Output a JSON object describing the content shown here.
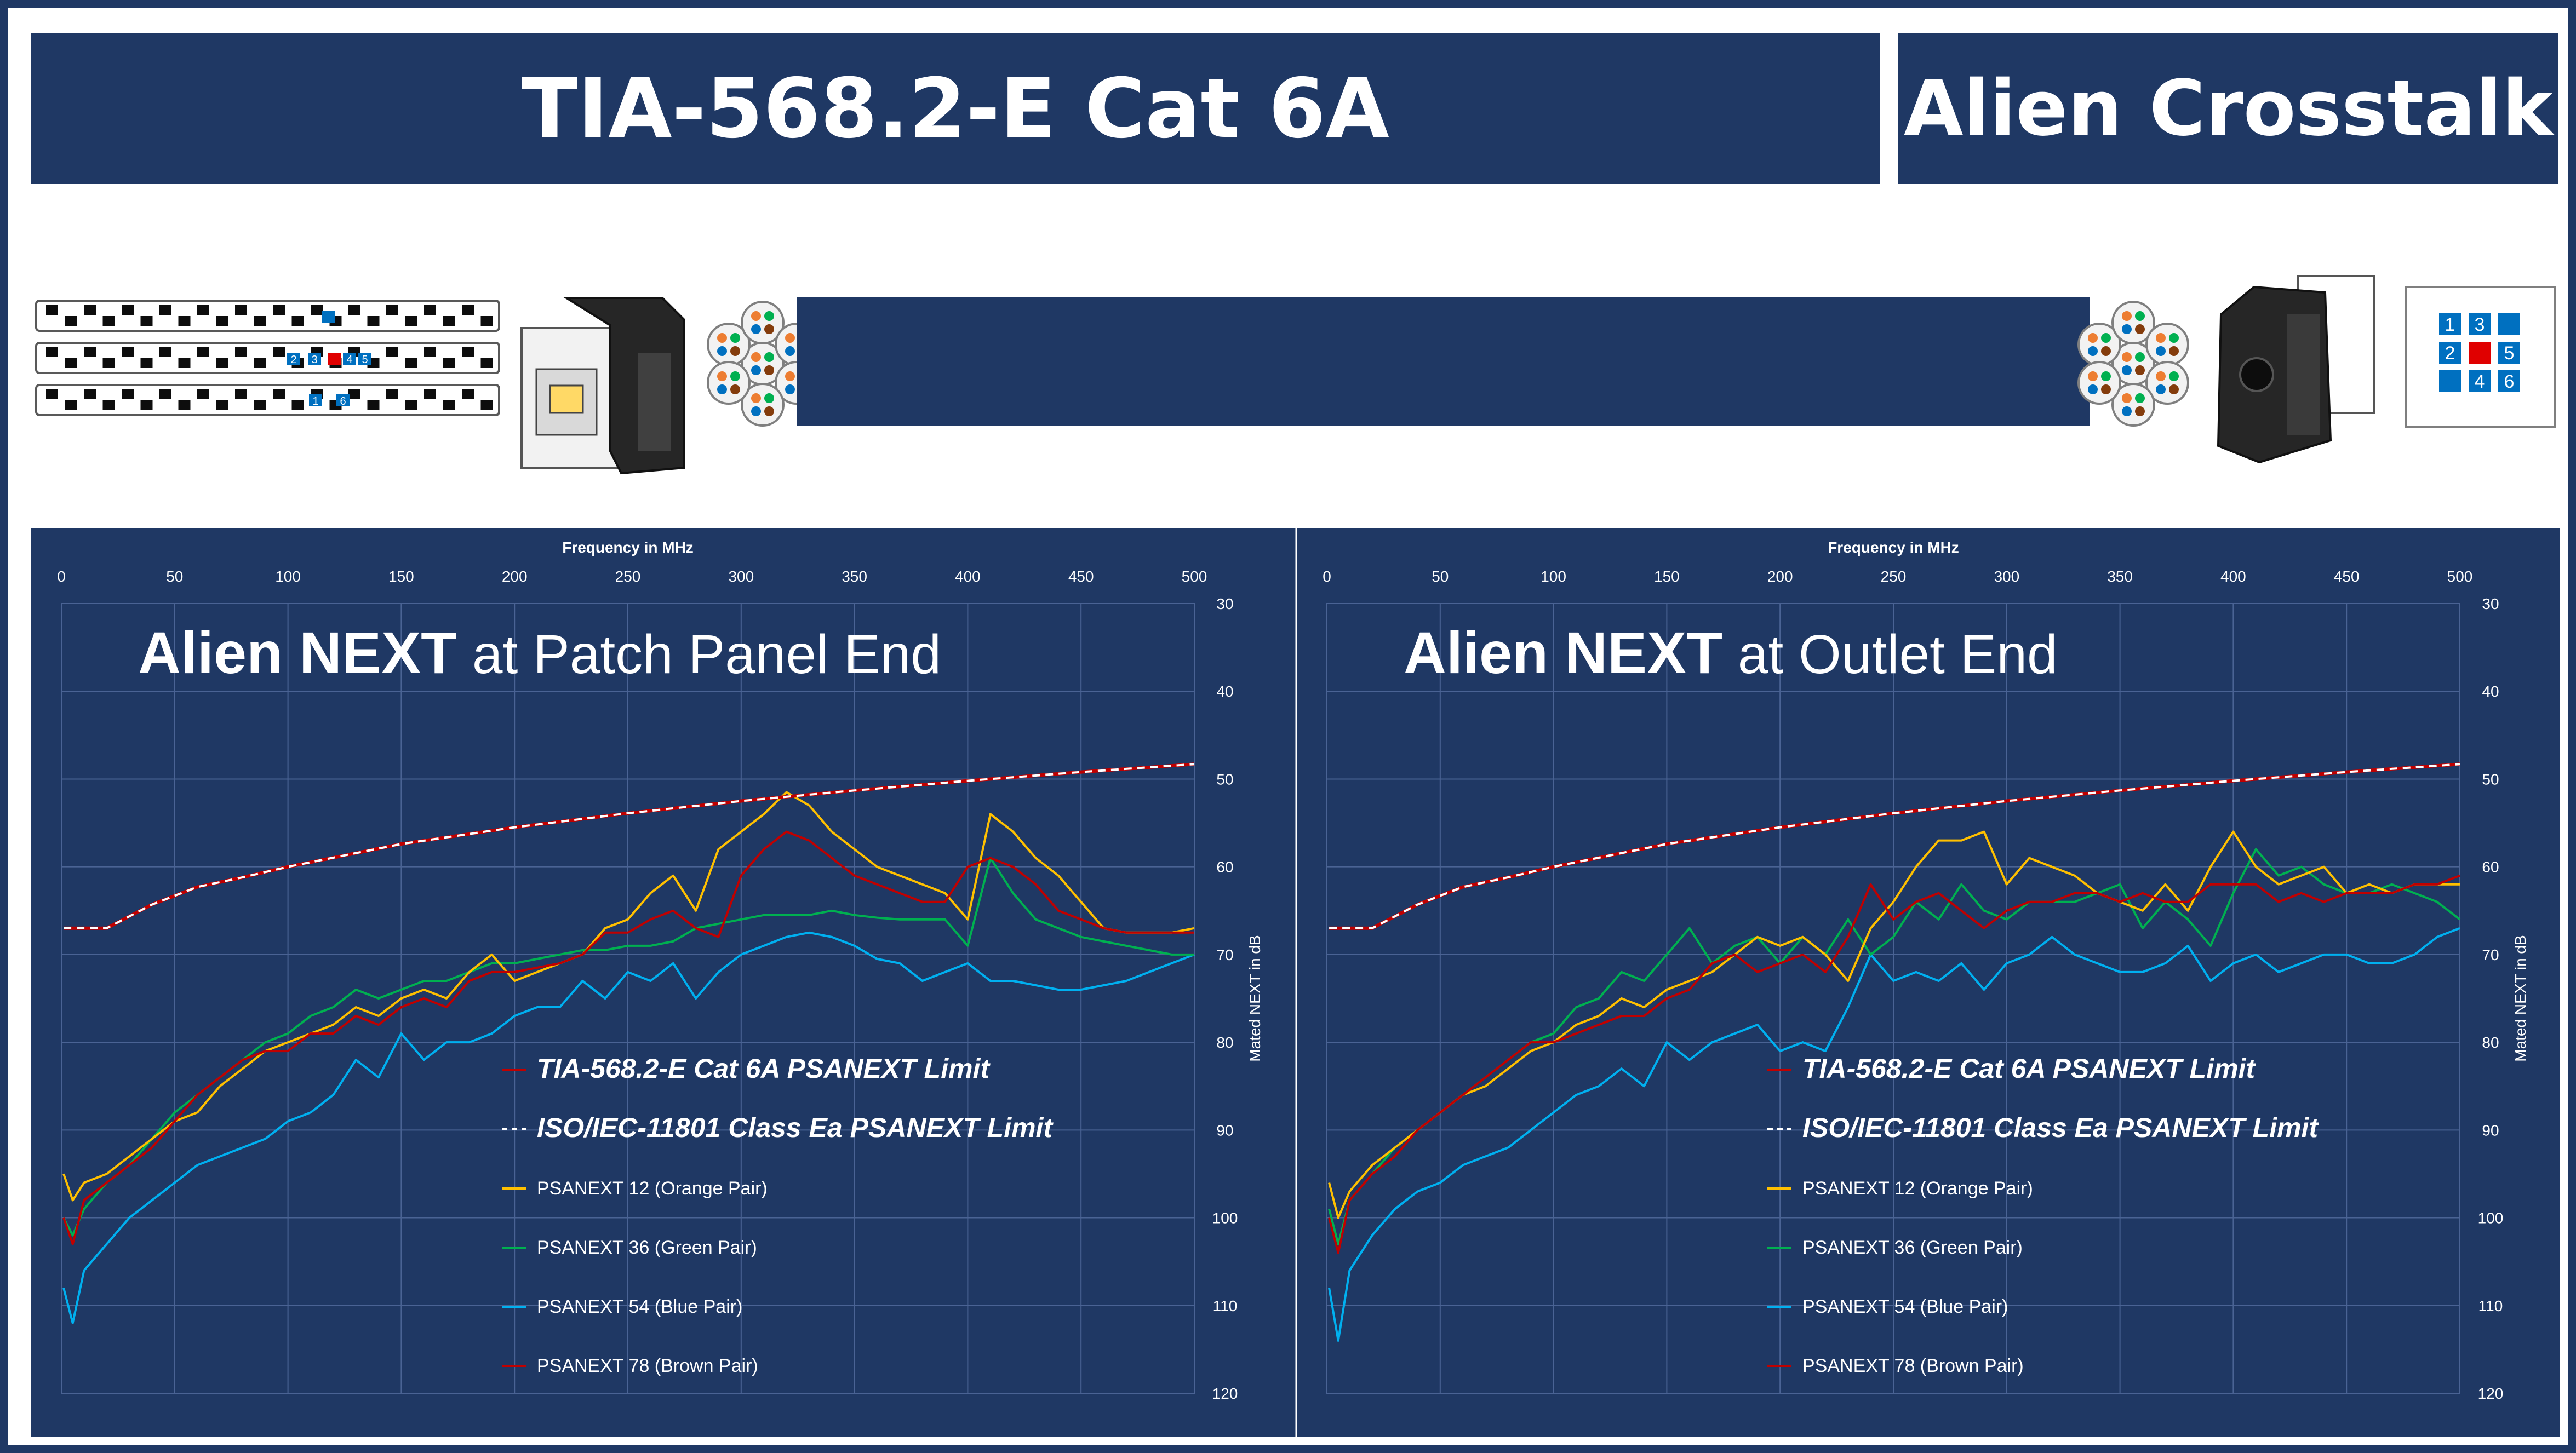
{
  "header": {
    "title": "TIA-568.2-E Cat 6A",
    "subtitle": "Alien Crosstalk"
  },
  "banner": {
    "outlet_grid_labels": [
      "1",
      "3",
      "2",
      "5",
      "4",
      "6"
    ],
    "panel_port_labels": [
      "2",
      "3",
      "4",
      "5",
      "1",
      "6"
    ]
  },
  "colors": {
    "background": "#1f3864",
    "tia_limit": "#c00000",
    "iso_limit": "#ffffff",
    "orange_pair": "#ffc000",
    "green_pair": "#00b050",
    "blue_pair": "#00b0f0",
    "brown_pair": "#c00000"
  },
  "legend": {
    "tia_limit": "TIA-568.2-E Cat 6A PSANEXT Limit",
    "iso_limit": "ISO/IEC-11801 Class Ea PSANEXT Limit",
    "orange": "PSANEXT 12 (Orange Pair)",
    "green": "PSANEXT 36 (Green Pair)",
    "blue": "PSANEXT 54 (Blue Pair)",
    "brown": "PSANEXT 78 (Brown Pair)"
  },
  "chart_data": [
    {
      "type": "line",
      "title_bold": "Alien NEXT",
      "title_rest": "at Patch Panel End",
      "xlabel": "Frequency in MHz",
      "ylabel": "Mated NEXT in dB",
      "x_ticks": [
        "0",
        "50",
        "100",
        "150",
        "200",
        "250",
        "300",
        "350",
        "400",
        "450",
        "500"
      ],
      "y_ticks": [
        "30",
        "40",
        "50",
        "60",
        "70",
        "80",
        "90",
        "100",
        "110",
        "120"
      ],
      "xlim": [
        0,
        500
      ],
      "ylim": [
        30,
        120
      ],
      "y_inverted": true,
      "grid": true,
      "legend_position": "bottom-center",
      "series": [
        {
          "name": "TIA-568.2-E Cat 6A PSANEXT Limit",
          "key": "tia",
          "style": "solid",
          "x": [
            1,
            20,
            40,
            60,
            80,
            100,
            150,
            200,
            250,
            300,
            350,
            400,
            450,
            500
          ],
          "y": [
            67,
            67,
            64.3,
            62.3,
            61.2,
            60,
            57.4,
            55.5,
            53.9,
            52.5,
            51.3,
            50.2,
            49.2,
            48.3
          ]
        },
        {
          "name": "ISO/IEC-11801 Class Ea PSANEXT Limit",
          "key": "iso",
          "style": "dashed",
          "x": [
            1,
            20,
            40,
            60,
            80,
            100,
            150,
            200,
            250,
            300,
            350,
            400,
            450,
            500
          ],
          "y": [
            67,
            67,
            64.3,
            62.3,
            61.2,
            60,
            57.4,
            55.5,
            53.9,
            52.5,
            51.3,
            50.2,
            49.2,
            48.3
          ]
        },
        {
          "name": "PSANEXT 12 (Orange Pair)",
          "key": "orange",
          "x": [
            1,
            5,
            10,
            20,
            30,
            40,
            50,
            60,
            70,
            80,
            90,
            100,
            110,
            120,
            130,
            140,
            150,
            160,
            170,
            180,
            190,
            200,
            210,
            220,
            230,
            240,
            250,
            260,
            270,
            280,
            290,
            300,
            310,
            320,
            330,
            340,
            350,
            360,
            370,
            380,
            390,
            400,
            410,
            420,
            430,
            440,
            450,
            460,
            470,
            480,
            490,
            500
          ],
          "y": [
            95,
            98,
            96,
            95,
            93,
            91,
            89,
            88,
            85,
            83,
            81,
            80,
            79,
            78,
            76,
            77,
            75,
            74,
            75,
            72,
            70,
            73,
            72,
            71,
            70,
            67,
            66,
            63,
            61,
            65,
            58,
            56,
            54,
            51.5,
            53,
            56,
            58,
            60,
            61,
            62,
            63,
            66,
            54,
            56,
            59,
            61,
            64,
            67,
            67.5,
            67.5,
            67.5,
            67
          ]
        },
        {
          "name": "PSANEXT 36 (Green Pair)",
          "key": "green",
          "x": [
            1,
            5,
            10,
            20,
            30,
            40,
            50,
            60,
            70,
            80,
            90,
            100,
            110,
            120,
            130,
            140,
            150,
            160,
            170,
            180,
            190,
            200,
            210,
            220,
            230,
            240,
            250,
            260,
            270,
            280,
            290,
            300,
            310,
            320,
            330,
            340,
            350,
            360,
            370,
            380,
            390,
            400,
            410,
            420,
            430,
            440,
            450,
            460,
            470,
            480,
            490,
            500
          ],
          "y": [
            100,
            102,
            99,
            96,
            94,
            91,
            88,
            86,
            84,
            82,
            80,
            79,
            77,
            76,
            74,
            75,
            74,
            73,
            73,
            72,
            71,
            71,
            70.5,
            70,
            69.5,
            69.5,
            69,
            69,
            68.5,
            67,
            66.5,
            66,
            65.5,
            65.5,
            65.5,
            65,
            65.5,
            65.8,
            66,
            66,
            66,
            69,
            59,
            63,
            66,
            67,
            68,
            68.5,
            69,
            69.5,
            70,
            70
          ]
        },
        {
          "name": "PSANEXT 54 (Blue Pair)",
          "key": "blue",
          "x": [
            1,
            5,
            10,
            20,
            30,
            40,
            50,
            60,
            70,
            80,
            90,
            100,
            110,
            120,
            130,
            140,
            150,
            160,
            170,
            180,
            190,
            200,
            210,
            220,
            230,
            240,
            250,
            260,
            270,
            280,
            290,
            300,
            310,
            320,
            330,
            340,
            350,
            360,
            370,
            380,
            390,
            400,
            410,
            420,
            430,
            440,
            450,
            460,
            470,
            480,
            490,
            500
          ],
          "y": [
            108,
            112,
            106,
            103,
            100,
            98,
            96,
            94,
            93,
            92,
            91,
            89,
            88,
            86,
            82,
            84,
            79,
            82,
            80,
            80,
            79,
            77,
            76,
            76,
            73,
            75,
            72,
            73,
            71,
            75,
            72,
            70,
            69,
            68,
            67.5,
            68,
            69,
            70.5,
            71,
            73,
            72,
            71,
            73,
            73,
            73.5,
            74,
            74,
            73.5,
            73,
            72,
            71,
            70
          ]
        },
        {
          "name": "PSANEXT 78 (Brown Pair)",
          "key": "brown",
          "x": [
            1,
            5,
            10,
            20,
            30,
            40,
            50,
            60,
            70,
            80,
            90,
            100,
            110,
            120,
            130,
            140,
            150,
            160,
            170,
            180,
            190,
            200,
            210,
            220,
            230,
            240,
            250,
            260,
            270,
            280,
            290,
            300,
            310,
            320,
            330,
            340,
            350,
            360,
            370,
            380,
            390,
            400,
            410,
            420,
            430,
            440,
            450,
            460,
            470,
            480,
            490,
            500
          ],
          "y": [
            100,
            103,
            98,
            96,
            94,
            92,
            89,
            86,
            84,
            82,
            81,
            81,
            79,
            79,
            77,
            78,
            76,
            75,
            76,
            73,
            72,
            72,
            71.5,
            71,
            70,
            67.5,
            67.5,
            66,
            65,
            67,
            68,
            61,
            58,
            56,
            57,
            59,
            61,
            62,
            63,
            64,
            64,
            60,
            59,
            60,
            62,
            65,
            66,
            67,
            67.5,
            67.5,
            67.5,
            67.5
          ]
        }
      ]
    },
    {
      "type": "line",
      "title_bold": "Alien NEXT",
      "title_rest": "at Outlet End",
      "xlabel": "Frequency in MHz",
      "ylabel": "Mated NEXT in dB",
      "x_ticks": [
        "0",
        "50",
        "100",
        "150",
        "200",
        "250",
        "300",
        "350",
        "400",
        "450",
        "500"
      ],
      "y_ticks": [
        "30",
        "40",
        "50",
        "60",
        "70",
        "80",
        "90",
        "100",
        "110",
        "120"
      ],
      "xlim": [
        0,
        500
      ],
      "ylim": [
        30,
        120
      ],
      "y_inverted": true,
      "grid": true,
      "legend_position": "bottom-center",
      "series": [
        {
          "name": "TIA-568.2-E Cat 6A PSANEXT Limit",
          "key": "tia",
          "style": "solid",
          "x": [
            1,
            20,
            40,
            60,
            80,
            100,
            150,
            200,
            250,
            300,
            350,
            400,
            450,
            500
          ],
          "y": [
            67,
            67,
            64.3,
            62.3,
            61.2,
            60,
            57.4,
            55.5,
            53.9,
            52.5,
            51.3,
            50.2,
            49.2,
            48.3
          ]
        },
        {
          "name": "ISO/IEC-11801 Class Ea PSANEXT Limit",
          "key": "iso",
          "style": "dashed",
          "x": [
            1,
            20,
            40,
            60,
            80,
            100,
            150,
            200,
            250,
            300,
            350,
            400,
            450,
            500
          ],
          "y": [
            67,
            67,
            64.3,
            62.3,
            61.2,
            60,
            57.4,
            55.5,
            53.9,
            52.5,
            51.3,
            50.2,
            49.2,
            48.3
          ]
        },
        {
          "name": "PSANEXT 12 (Orange Pair)",
          "key": "orange",
          "x": [
            1,
            5,
            10,
            20,
            30,
            40,
            50,
            60,
            70,
            80,
            90,
            100,
            110,
            120,
            130,
            140,
            150,
            160,
            170,
            180,
            190,
            200,
            210,
            220,
            230,
            240,
            250,
            260,
            270,
            280,
            290,
            300,
            310,
            320,
            330,
            340,
            350,
            360,
            370,
            380,
            390,
            400,
            410,
            420,
            430,
            440,
            450,
            460,
            470,
            480,
            490,
            500
          ],
          "y": [
            96,
            100,
            97,
            94,
            92,
            90,
            88,
            86,
            85,
            83,
            81,
            80,
            78,
            77,
            75,
            76,
            74,
            73,
            72,
            70,
            68,
            69,
            68,
            70,
            73,
            67,
            64,
            60,
            57,
            57,
            56,
            62,
            59,
            60,
            61,
            63,
            64,
            65,
            62,
            65,
            60,
            56,
            60,
            62,
            61,
            60,
            63,
            62,
            63,
            62,
            62,
            62
          ]
        },
        {
          "name": "PSANEXT 36 (Green Pair)",
          "key": "green",
          "x": [
            1,
            5,
            10,
            20,
            30,
            40,
            50,
            60,
            70,
            80,
            90,
            100,
            110,
            120,
            130,
            140,
            150,
            160,
            170,
            180,
            190,
            200,
            210,
            220,
            230,
            240,
            250,
            260,
            270,
            280,
            290,
            300,
            310,
            320,
            330,
            340,
            350,
            360,
            370,
            380,
            390,
            400,
            410,
            420,
            430,
            440,
            450,
            460,
            470,
            480,
            490,
            500
          ],
          "y": [
            99,
            103,
            98,
            95,
            92,
            90,
            88,
            86,
            84,
            82,
            80,
            79,
            76,
            75,
            72,
            73,
            70,
            67,
            71,
            69,
            68,
            71,
            68,
            70,
            66,
            70,
            68,
            64,
            66,
            62,
            65,
            66,
            64,
            64,
            64,
            63,
            62,
            67,
            64,
            66,
            69,
            63,
            58,
            61,
            60,
            62,
            63,
            63,
            62,
            63,
            64,
            66
          ]
        },
        {
          "name": "PSANEXT 54 (Blue Pair)",
          "key": "blue",
          "x": [
            1,
            5,
            10,
            20,
            30,
            40,
            50,
            60,
            70,
            80,
            90,
            100,
            110,
            120,
            130,
            140,
            150,
            160,
            170,
            180,
            190,
            200,
            210,
            220,
            230,
            240,
            250,
            260,
            270,
            280,
            290,
            300,
            310,
            320,
            330,
            340,
            350,
            360,
            370,
            380,
            390,
            400,
            410,
            420,
            430,
            440,
            450,
            460,
            470,
            480,
            490,
            500
          ],
          "y": [
            108,
            114,
            106,
            102,
            99,
            97,
            96,
            94,
            93,
            92,
            90,
            88,
            86,
            85,
            83,
            85,
            80,
            82,
            80,
            79,
            78,
            81,
            80,
            81,
            76,
            70,
            73,
            72,
            73,
            71,
            74,
            71,
            70,
            68,
            70,
            71,
            72,
            72,
            71,
            69,
            73,
            71,
            70,
            72,
            71,
            70,
            70,
            71,
            71,
            70,
            68,
            67
          ]
        },
        {
          "name": "PSANEXT 78 (Brown Pair)",
          "key": "brown",
          "x": [
            1,
            5,
            10,
            20,
            30,
            40,
            50,
            60,
            70,
            80,
            90,
            100,
            110,
            120,
            130,
            140,
            150,
            160,
            170,
            180,
            190,
            200,
            210,
            220,
            230,
            240,
            250,
            260,
            270,
            280,
            290,
            300,
            310,
            320,
            330,
            340,
            350,
            360,
            370,
            380,
            390,
            400,
            410,
            420,
            430,
            440,
            450,
            460,
            470,
            480,
            490,
            500
          ],
          "y": [
            100,
            104,
            98,
            95,
            93,
            90,
            88,
            86,
            84,
            82,
            80,
            80,
            79,
            78,
            77,
            77,
            75,
            74,
            71,
            70,
            72,
            71,
            70,
            72,
            68,
            62,
            66,
            64,
            63,
            65,
            67,
            65,
            64,
            64,
            63,
            63,
            64,
            63,
            64,
            64,
            62,
            62,
            62,
            64,
            63,
            64,
            63,
            63,
            63,
            62,
            62,
            61
          ]
        }
      ]
    }
  ]
}
